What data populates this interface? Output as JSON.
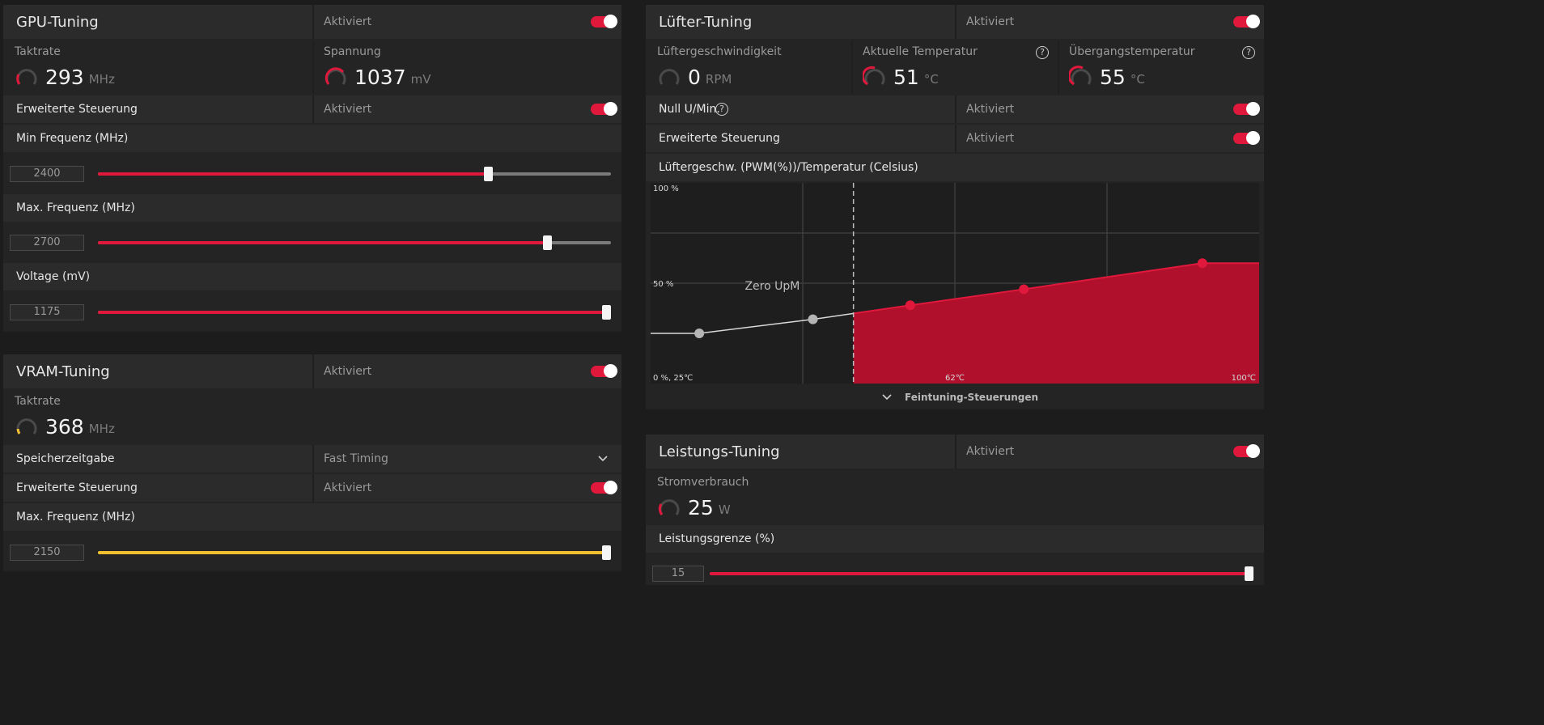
{
  "colors": {
    "accent": "#e0183c",
    "accent_fill": "#b0102c",
    "vram": "#f0c030",
    "bg": "#1c1c1c",
    "panel": "#2b2b2b"
  },
  "gpu": {
    "title": "GPU-Tuning",
    "status": "Aktiviert",
    "clock": {
      "label": "Taktrate",
      "value": "293",
      "unit": "MHz"
    },
    "voltage": {
      "label": "Spannung",
      "value": "1037",
      "unit": "mV"
    },
    "advanced": {
      "label": "Erweiterte Steuerung",
      "status": "Aktiviert"
    },
    "min_freq": {
      "label": "Min Frequenz (MHz)",
      "value": "2400",
      "fraction": 0.76
    },
    "max_freq": {
      "label": "Max. Frequenz (MHz)",
      "value": "2700",
      "fraction": 0.875
    },
    "volt_slider": {
      "label": "Voltage (mV)",
      "value": "1175",
      "fraction": 1.0
    }
  },
  "vram": {
    "title": "VRAM-Tuning",
    "status": "Aktiviert",
    "clock": {
      "label": "Taktrate",
      "value": "368",
      "unit": "MHz"
    },
    "timing": {
      "label": "Speicherzeitgabe",
      "value": "Fast Timing"
    },
    "advanced": {
      "label": "Erweiterte Steuerung",
      "status": "Aktiviert"
    },
    "max_freq": {
      "label": "Max. Frequenz (MHz)",
      "value": "2150",
      "fraction": 1.0
    }
  },
  "fan": {
    "title": "Lüfter-Tuning",
    "status": "Aktiviert",
    "speed": {
      "label": "Lüftergeschwindigkeit",
      "value": "0",
      "unit": "RPM"
    },
    "temp": {
      "label": "Aktuelle Temperatur",
      "value": "51",
      "unit": "°C"
    },
    "junction": {
      "label": "Übergangstemperatur",
      "value": "55",
      "unit": "°C"
    },
    "zero_rpm": {
      "label": "Null U/Min.",
      "status": "Aktiviert"
    },
    "advanced": {
      "label": "Erweiterte Steuerung",
      "status": "Aktiviert"
    },
    "curve_title": "Lüftergeschw. (PWM(%))/Temperatur (Celsius)",
    "fine_tune": "Feintuning-Steuerungen",
    "help_glyph": "?"
  },
  "power": {
    "title": "Leistungs-Tuning",
    "status": "Aktiviert",
    "consumption": {
      "label": "Stromverbrauch",
      "value": "25",
      "unit": "W"
    },
    "limit": {
      "label": "Leistungsgrenze (%)",
      "value": "15",
      "fraction": 1.0
    }
  },
  "chart_data": {
    "type": "area",
    "title": "Lüftergeschw. (PWM(%))/Temperatur (Celsius)",
    "y_tick_labels": [
      "100 %",
      "50 %",
      "0 %, 25℃"
    ],
    "x_tick_labels": [
      "62℃",
      "100℃"
    ],
    "annotation": "Zero UpM",
    "xlim": [
      25,
      100
    ],
    "ylim": [
      0,
      100
    ],
    "zero_rpm_threshold_c": 50,
    "points": [
      {
        "x": 31,
        "y": 25,
        "active": false
      },
      {
        "x": 45,
        "y": 32,
        "active": false
      },
      {
        "x": 57,
        "y": 39,
        "active": true
      },
      {
        "x": 71,
        "y": 47,
        "active": true
      },
      {
        "x": 93,
        "y": 60,
        "active": true
      }
    ],
    "grid": true
  }
}
